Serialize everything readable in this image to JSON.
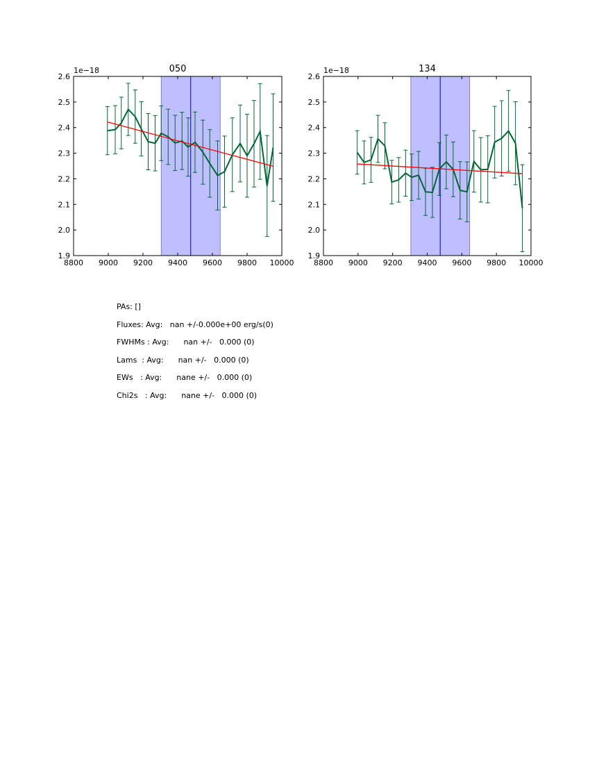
{
  "chart_data": [
    {
      "type": "line",
      "title": "050",
      "xlim": [
        8800,
        10000
      ],
      "ylim": [
        1.9,
        2.6
      ],
      "xticks": [
        8800,
        9000,
        9200,
        9400,
        9600,
        9800,
        10000
      ],
      "yticks": [
        1.9,
        2.0,
        2.1,
        2.2,
        2.3,
        2.4,
        2.5,
        2.6
      ],
      "ytick_labels": [
        "1.9",
        "2.0",
        "2.1",
        "2.2",
        "2.3",
        "2.4",
        "2.5",
        "2.6"
      ],
      "offset_label": "1e−18",
      "shaded_region": [
        9305,
        9645
      ],
      "center_line": 9475,
      "series": [
        {
          "name": "spectrum",
          "color": "#006633",
          "x": [
            8995,
            9040,
            9075,
            9115,
            9155,
            9190,
            9230,
            9270,
            9305,
            9345,
            9385,
            9425,
            9460,
            9500,
            9545,
            9585,
            9630,
            9670,
            9715,
            9760,
            9800,
            9840,
            9875,
            9915,
            9950
          ],
          "y": [
            2.388,
            2.392,
            2.418,
            2.471,
            2.443,
            2.395,
            2.345,
            2.339,
            2.378,
            2.364,
            2.34,
            2.348,
            2.324,
            2.343,
            2.304,
            2.26,
            2.213,
            2.228,
            2.294,
            2.338,
            2.29,
            2.337,
            2.385,
            2.172,
            2.322
          ],
          "yerr": [
            0.094,
            0.094,
            0.101,
            0.102,
            0.104,
            0.106,
            0.11,
            0.108,
            0.107,
            0.108,
            0.108,
            0.112,
            0.114,
            0.118,
            0.125,
            0.132,
            0.135,
            0.139,
            0.144,
            0.15,
            0.162,
            0.169,
            0.187,
            0.197,
            0.21
          ]
        },
        {
          "name": "fit",
          "color": "#ff0000",
          "x": [
            8995,
            9950
          ],
          "y": [
            2.422,
            2.249
          ]
        }
      ]
    },
    {
      "type": "line",
      "title": "134",
      "xlim": [
        8800,
        10000
      ],
      "ylim": [
        1.9,
        2.6
      ],
      "xticks": [
        8800,
        9000,
        9200,
        9400,
        9600,
        9800,
        10000
      ],
      "yticks": [
        1.9,
        2.0,
        2.1,
        2.2,
        2.3,
        2.4,
        2.5,
        2.6
      ],
      "ytick_labels": [
        "1.9",
        "2.0",
        "2.1",
        "2.2",
        "2.3",
        "2.4",
        "2.5",
        "2.6"
      ],
      "offset_label": "1e−18",
      "shaded_region": [
        9305,
        9645
      ],
      "center_line": 9475,
      "series": [
        {
          "name": "spectrum",
          "color": "#006633",
          "x": [
            8995,
            9035,
            9075,
            9115,
            9155,
            9195,
            9235,
            9275,
            9310,
            9350,
            9390,
            9430,
            9470,
            9510,
            9550,
            9590,
            9630,
            9670,
            9710,
            9750,
            9790,
            9830,
            9870,
            9910,
            9950
          ],
          "y": [
            2.303,
            2.264,
            2.274,
            2.356,
            2.329,
            2.187,
            2.196,
            2.222,
            2.206,
            2.214,
            2.149,
            2.147,
            2.238,
            2.266,
            2.237,
            2.155,
            2.149,
            2.268,
            2.235,
            2.237,
            2.343,
            2.358,
            2.387,
            2.339,
            2.085
          ]
        },
        {
          "name": "fit",
          "color": "#ff0000",
          "x": [
            8995,
            9950
          ],
          "y": [
            2.258,
            2.22
          ]
        }
      ]
    }
  ],
  "chart_errors": [
    [
      0.094,
      0.094,
      0.101,
      0.102,
      0.104,
      0.106,
      0.11,
      0.108,
      0.107,
      0.108,
      0.108,
      0.112,
      0.114,
      0.118,
      0.125,
      0.132,
      0.135,
      0.139,
      0.144,
      0.15,
      0.162,
      0.169,
      0.187,
      0.197,
      0.21
    ],
    [
      0.085,
      0.084,
      0.088,
      0.092,
      0.09,
      0.085,
      0.087,
      0.09,
      0.091,
      0.093,
      0.092,
      0.098,
      0.103,
      0.105,
      0.107,
      0.112,
      0.117,
      0.12,
      0.126,
      0.131,
      0.14,
      0.147,
      0.158,
      0.162,
      0.17
    ]
  ],
  "stats": {
    "pas": "PAs: []",
    "fluxes": "Fluxes: Avg:   nan +/-0.000e+00 erg/s(0)",
    "fwhms": "FWHMs : Avg:      nan +/-   0.000 (0)",
    "lams": "Lams  : Avg:      nan +/-   0.000 (0)",
    "ews": "EWs   : Avg:      nane +/-   0.000 (0)",
    "chi2s": "Chi2s   : Avg:      nane +/-   0.000 (0)"
  }
}
